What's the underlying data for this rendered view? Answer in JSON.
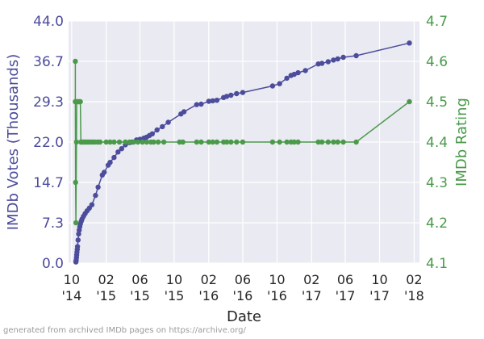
{
  "chart_data": {
    "type": "line",
    "xlabel": "Date",
    "x_ticks": [
      "10\n'14",
      "02\n'15",
      "06\n'15",
      "10\n'15",
      "02\n'16",
      "06\n'16",
      "10\n'16",
      "02\n'17",
      "06\n'17",
      "10\n'17",
      "02\n'18"
    ],
    "y_left": {
      "label": "IMDb Votes (Thousands)",
      "ticks": [
        "0.0",
        "7.3",
        "14.7",
        "22.0",
        "29.3",
        "36.7",
        "44.0"
      ],
      "ylim": [
        0,
        44
      ],
      "color": "#4c4c9c"
    },
    "y_right": {
      "label": "IMDb Rating",
      "ticks": [
        "4.1",
        "4.2",
        "4.3",
        "4.4",
        "4.5",
        "4.6",
        "4.7"
      ],
      "ylim": [
        4.1,
        4.7
      ],
      "color": "#4a9a4a"
    },
    "grid": true,
    "background": "#eaeaf2",
    "series": [
      {
        "axis": "left",
        "color": "#4c4c9c",
        "points": [
          [
            "2014-10-16",
            0.2
          ],
          [
            "2014-10-17",
            0.5
          ],
          [
            "2014-10-18",
            1.0
          ],
          [
            "2014-10-19",
            1.5
          ],
          [
            "2014-10-20",
            2.0
          ],
          [
            "2014-10-21",
            2.5
          ],
          [
            "2014-10-22",
            3.0
          ],
          [
            "2014-10-24",
            4.2
          ],
          [
            "2014-10-26",
            5.3
          ],
          [
            "2014-10-28",
            6.0
          ],
          [
            "2014-10-30",
            6.6
          ],
          [
            "2014-11-01",
            7.1
          ],
          [
            "2014-11-04",
            7.6
          ],
          [
            "2014-11-07",
            8.0
          ],
          [
            "2014-11-12",
            8.5
          ],
          [
            "2014-11-18",
            9.0
          ],
          [
            "2014-11-25",
            9.5
          ],
          [
            "2014-12-03",
            10.0
          ],
          [
            "2014-12-12",
            10.6
          ],
          [
            "2014-12-25",
            12.3
          ],
          [
            "2015-01-03",
            13.8
          ],
          [
            "2015-01-18",
            16.0
          ],
          [
            "2015-01-25",
            16.5
          ],
          [
            "2015-02-08",
            17.8
          ],
          [
            "2015-02-15",
            18.3
          ],
          [
            "2015-03-01",
            19.2
          ],
          [
            "2015-03-15",
            20.2
          ],
          [
            "2015-03-28",
            20.8
          ],
          [
            "2015-04-10",
            21.5
          ],
          [
            "2015-04-25",
            21.9
          ],
          [
            "2015-05-05",
            22.0
          ],
          [
            "2015-05-20",
            22.4
          ],
          [
            "2015-06-01",
            22.5
          ],
          [
            "2015-06-15",
            22.7
          ],
          [
            "2015-06-25",
            22.9
          ],
          [
            "2015-07-05",
            23.2
          ],
          [
            "2015-07-15",
            23.5
          ],
          [
            "2015-08-01",
            24.2
          ],
          [
            "2015-08-20",
            24.8
          ],
          [
            "2015-09-10",
            25.6
          ],
          [
            "2015-10-25",
            27.1
          ],
          [
            "2015-11-05",
            27.5
          ],
          [
            "2015-12-20",
            28.8
          ],
          [
            "2016-01-05",
            28.9
          ],
          [
            "2016-02-01",
            29.4
          ],
          [
            "2016-02-15",
            29.5
          ],
          [
            "2016-03-01",
            29.6
          ],
          [
            "2016-03-25",
            30.1
          ],
          [
            "2016-04-05",
            30.3
          ],
          [
            "2016-04-20",
            30.5
          ],
          [
            "2016-05-10",
            30.8
          ],
          [
            "2016-06-01",
            31.0
          ],
          [
            "2016-09-15",
            32.2
          ],
          [
            "2016-10-10",
            32.6
          ],
          [
            "2016-11-05",
            33.6
          ],
          [
            "2016-11-20",
            34.1
          ],
          [
            "2016-12-01",
            34.3
          ],
          [
            "2016-12-15",
            34.6
          ],
          [
            "2017-01-10",
            35.0
          ],
          [
            "2017-02-25",
            36.2
          ],
          [
            "2017-03-10",
            36.3
          ],
          [
            "2017-04-01",
            36.6
          ],
          [
            "2017-04-20",
            36.9
          ],
          [
            "2017-05-05",
            37.1
          ],
          [
            "2017-05-25",
            37.4
          ],
          [
            "2017-07-10",
            37.7
          ],
          [
            "2018-01-15",
            40.0
          ]
        ]
      },
      {
        "axis": "right",
        "color": "#4a9a4a",
        "points": [
          [
            "2014-10-14",
            4.6
          ],
          [
            "2014-10-14",
            4.5
          ],
          [
            "2014-10-15",
            4.3
          ],
          [
            "2014-10-16",
            4.2
          ],
          [
            "2014-10-18",
            4.4
          ],
          [
            "2014-10-19",
            4.5
          ],
          [
            "2014-10-22",
            4.5
          ],
          [
            "2014-10-26",
            4.5
          ],
          [
            "2014-10-29",
            4.5
          ],
          [
            "2014-11-01",
            4.5
          ],
          [
            "2014-11-03",
            4.4
          ],
          [
            "2014-11-05",
            4.4
          ],
          [
            "2014-11-10",
            4.4
          ],
          [
            "2014-11-15",
            4.4
          ],
          [
            "2014-11-20",
            4.4
          ],
          [
            "2014-11-25",
            4.4
          ],
          [
            "2014-12-01",
            4.4
          ],
          [
            "2014-12-08",
            4.4
          ],
          [
            "2014-12-15",
            4.4
          ],
          [
            "2014-12-22",
            4.4
          ],
          [
            "2015-01-01",
            4.4
          ],
          [
            "2015-01-10",
            4.4
          ],
          [
            "2015-02-01",
            4.4
          ],
          [
            "2015-02-15",
            4.4
          ],
          [
            "2015-03-01",
            4.4
          ],
          [
            "2015-03-20",
            4.4
          ],
          [
            "2015-04-10",
            4.4
          ],
          [
            "2015-04-25",
            4.4
          ],
          [
            "2015-05-10",
            4.4
          ],
          [
            "2015-05-25",
            4.4
          ],
          [
            "2015-06-10",
            4.4
          ],
          [
            "2015-06-25",
            4.4
          ],
          [
            "2015-07-10",
            4.4
          ],
          [
            "2015-07-20",
            4.4
          ],
          [
            "2015-08-05",
            4.4
          ],
          [
            "2015-08-25",
            4.4
          ],
          [
            "2015-10-20",
            4.4
          ],
          [
            "2015-11-01",
            4.4
          ],
          [
            "2015-12-20",
            4.4
          ],
          [
            "2016-01-05",
            4.4
          ],
          [
            "2016-02-01",
            4.4
          ],
          [
            "2016-02-15",
            4.4
          ],
          [
            "2016-03-01",
            4.4
          ],
          [
            "2016-03-25",
            4.4
          ],
          [
            "2016-04-05",
            4.4
          ],
          [
            "2016-04-20",
            4.4
          ],
          [
            "2016-05-10",
            4.4
          ],
          [
            "2016-06-01",
            4.4
          ],
          [
            "2016-09-15",
            4.4
          ],
          [
            "2016-10-10",
            4.4
          ],
          [
            "2016-11-05",
            4.4
          ],
          [
            "2016-11-20",
            4.4
          ],
          [
            "2016-12-01",
            4.4
          ],
          [
            "2016-12-15",
            4.4
          ],
          [
            "2017-02-25",
            4.4
          ],
          [
            "2017-03-10",
            4.4
          ],
          [
            "2017-04-01",
            4.4
          ],
          [
            "2017-04-20",
            4.4
          ],
          [
            "2017-05-05",
            4.4
          ],
          [
            "2017-05-25",
            4.4
          ],
          [
            "2017-07-10",
            4.4
          ],
          [
            "2018-01-15",
            4.5
          ]
        ]
      }
    ]
  },
  "credit": "generated from archived IMDb pages on https://archive.org/"
}
